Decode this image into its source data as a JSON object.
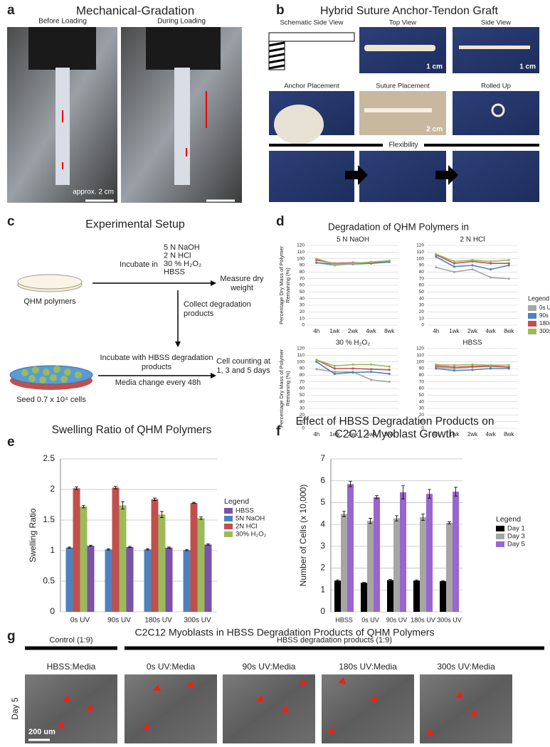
{
  "figure": {
    "a": {
      "label": "a",
      "title": "Mechanical-Gradation",
      "captions": [
        "Before Loading",
        "During Loading"
      ],
      "scale_bar": "approx. 2 cm"
    },
    "b": {
      "label": "b",
      "title": "Hybrid Suture Anchor-Tendon Graft",
      "captions": [
        "Schematic Side View",
        "Top View",
        "Side View",
        "Anchor Placement",
        "Suture Placement",
        "Rolled Up"
      ],
      "scale_bars": [
        "1 cm",
        "1 cm",
        "2 cm"
      ],
      "flexibility": "Flexibility"
    },
    "c": {
      "label": "c",
      "title": "Experimental Setup",
      "incubate": "Incubate in",
      "solutions": [
        "5 N NaOH",
        "2 N HCl",
        "30 % H₂O₂",
        "HBSS"
      ],
      "measure": "Measure dry weight",
      "sample": "QHM polymers",
      "collect": "Collect degradation products",
      "incubate_cells": "Incubate with HBSS degradation products",
      "media": "Media change every 48h",
      "counting": "Cell counting at 1, 3 and 5 days",
      "seed": "Seed 0.7 x 10⁴ cells"
    },
    "d": {
      "label": "d"
    },
    "e": {
      "label": "e"
    },
    "f": {
      "label": "f"
    },
    "g": {
      "label": "g",
      "title": "C2C12 Myoblasts in HBSS Degradation Products of QHM Polymers",
      "control": "Control (1:9)",
      "treated": "HBSS degradation products (1:9)",
      "captions": [
        "HBSS:Media",
        "0s UV:Media",
        "90s UV:Media",
        "180s UV:Media",
        "300s UV:Media"
      ],
      "row": "Day 5",
      "scale_bar": "200 um"
    }
  },
  "chart_data": [
    {
      "type": "line",
      "title": "Degradation of QHM Polymers in",
      "ylabel": "Percentage Dry Mass of Polymer Remaining (%)",
      "categories": [
        "4h",
        "1wk",
        "2wk",
        "4wk",
        "8wk"
      ],
      "ylim": [
        0,
        120
      ],
      "yticks": [
        0,
        10,
        20,
        30,
        40,
        50,
        60,
        70,
        80,
        90,
        100,
        110,
        120
      ],
      "grid": true,
      "legend_title": "Legend",
      "legend": "right",
      "series": [
        {
          "name": "0s UV",
          "color": "#a6a6a6"
        },
        {
          "name": "90s UV",
          "color": "#4f81bd"
        },
        {
          "name": "180s UV",
          "color": "#c0504d"
        },
        {
          "name": "300s UV",
          "color": "#9bbb59"
        }
      ],
      "panels": [
        {
          "title": "5 N NaOH",
          "values": [
            [
              94,
              90,
              93,
              94,
              96
            ],
            [
              94,
              92,
              92,
              93,
              95
            ],
            [
              98,
              93,
              94,
              94,
              97
            ],
            [
              100,
              92,
              93,
              95,
              97
            ]
          ]
        },
        {
          "title": "2 N HCl",
          "values": [
            [
              87,
              80,
              84,
              72,
              70
            ],
            [
              103,
              88,
              90,
              84,
              90
            ],
            [
              106,
              93,
              96,
              93,
              93
            ],
            [
              107,
              96,
              98,
              96,
              98
            ]
          ]
        },
        {
          "title": "30 % H₂O₂",
          "values": [
            [
              89,
              85,
              85,
              73,
              70
            ],
            [
              100,
              82,
              84,
              85,
              82
            ],
            [
              103,
              90,
              90,
              89,
              88
            ],
            [
              103,
              94,
              96,
              96,
              93
            ]
          ]
        },
        {
          "title": "HBSS",
          "values": [
            [
              92,
              90,
              92,
              93,
              92
            ],
            [
              90,
              87,
              88,
              90,
              90
            ],
            [
              94,
              92,
              93,
              94,
              92
            ],
            [
              96,
              95,
              96,
              95,
              95
            ]
          ]
        }
      ]
    },
    {
      "type": "bar",
      "title": "Swelling Ratio of QHM Polymers",
      "ylabel": "Swelling Ratio",
      "categories": [
        "0s UV",
        "90s UV",
        "180s UV",
        "300s UV"
      ],
      "ylim": [
        0,
        2.5
      ],
      "yticks": [
        0,
        0.5,
        1,
        1.5,
        2,
        2.5
      ],
      "grid": true,
      "legend_title": "Legend",
      "legend": "right",
      "series": [
        {
          "name": "HBSS",
          "color": "#7b52a6",
          "values": [
            1.08,
            1.06,
            1.05,
            1.1
          ],
          "errors": [
            0.01,
            0.01,
            0.01,
            0.01
          ]
        },
        {
          "name": "5N NaOH",
          "color": "#4f81bd",
          "values": [
            1.05,
            1.02,
            1.02,
            1.01
          ],
          "errors": [
            0.01,
            0.01,
            0.01,
            0.01
          ]
        },
        {
          "name": "2N HCl",
          "color": "#c0504d",
          "values": [
            2.02,
            2.03,
            1.84,
            1.78
          ],
          "errors": [
            0.02,
            0.02,
            0.02,
            0.01
          ]
        },
        {
          "name": "30% H₂O₂",
          "color": "#9bbb59",
          "values": [
            1.72,
            1.74,
            1.59,
            1.53
          ],
          "errors": [
            0.02,
            0.06,
            0.05,
            0.02
          ]
        }
      ]
    },
    {
      "type": "bar",
      "title": "Effect of HBSS Degradation Products on C2C12 Myoblast Growth",
      "ylabel": "Number of Cells (x 10,000)",
      "categories": [
        "HBSS",
        "0s UV",
        "90s UV",
        "180s UV",
        "300s UV"
      ],
      "ylim": [
        0,
        7
      ],
      "yticks": [
        0,
        1,
        2,
        3,
        4,
        5,
        6,
        7
      ],
      "grid": true,
      "legend_title": "Legend",
      "legend": "right",
      "series": [
        {
          "name": "Day 1",
          "color": "#000000",
          "values": [
            1.43,
            1.33,
            1.45,
            1.43,
            1.4
          ],
          "errors": [
            0.03,
            0.03,
            0.03,
            0.03,
            0.03
          ]
        },
        {
          "name": "Day 3",
          "color": "#a6a6a6",
          "values": [
            4.48,
            4.16,
            4.28,
            4.33,
            4.07
          ],
          "errors": [
            0.12,
            0.12,
            0.12,
            0.15,
            0.05
          ]
        },
        {
          "name": "Day 5",
          "color": "#9966cc",
          "values": [
            5.85,
            5.25,
            5.47,
            5.4,
            5.5
          ],
          "errors": [
            0.12,
            0.07,
            0.3,
            0.2,
            0.2
          ]
        }
      ]
    }
  ]
}
